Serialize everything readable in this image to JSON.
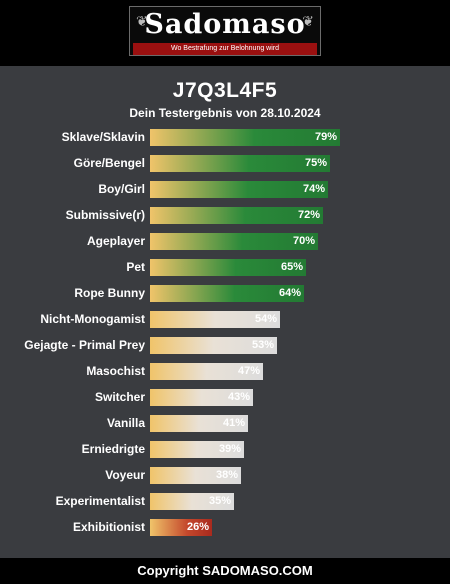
{
  "logo": {
    "name": "Sadomaso",
    "tagline": "Wo Bestrafung zur Belohnung wird"
  },
  "result": {
    "title": "J7Q3L4F5",
    "subtitle": "Dein Testergebnis von 28.10.2024"
  },
  "colors": {
    "background": "#3a3c40",
    "high": "#2a8a3a",
    "mid": "#dcdcdc",
    "low": "#b0321f",
    "gradient_start": "#f0c46a",
    "brand_red": "#9a1010"
  },
  "traits": [
    {
      "label": "Sklave/Sklavin",
      "percent": 79,
      "display": "79%",
      "level": "green"
    },
    {
      "label": "Göre/Bengel",
      "percent": 75,
      "display": "75%",
      "level": "green"
    },
    {
      "label": "Boy/Girl",
      "percent": 74,
      "display": "74%",
      "level": "green"
    },
    {
      "label": "Submissive(r)",
      "percent": 72,
      "display": "72%",
      "level": "green"
    },
    {
      "label": "Ageplayer",
      "percent": 70,
      "display": "70%",
      "level": "green"
    },
    {
      "label": "Pet",
      "percent": 65,
      "display": "65%",
      "level": "green"
    },
    {
      "label": "Rope Bunny",
      "percent": 64,
      "display": "64%",
      "level": "green"
    },
    {
      "label": "Nicht-Monogamist",
      "percent": 54,
      "display": "54%",
      "level": "gray"
    },
    {
      "label": "Gejagte - Primal Prey",
      "percent": 53,
      "display": "53%",
      "level": "gray"
    },
    {
      "label": "Masochist",
      "percent": 47,
      "display": "47%",
      "level": "gray"
    },
    {
      "label": "Switcher",
      "percent": 43,
      "display": "43%",
      "level": "gray"
    },
    {
      "label": "Vanilla",
      "percent": 41,
      "display": "41%",
      "level": "gray"
    },
    {
      "label": "Erniedrigte",
      "percent": 39,
      "display": "39%",
      "level": "gray"
    },
    {
      "label": "Voyeur",
      "percent": 38,
      "display": "38%",
      "level": "gray"
    },
    {
      "label": "Experimentalist",
      "percent": 35,
      "display": "35%",
      "level": "gray"
    },
    {
      "label": "Exhibitionist",
      "percent": 26,
      "display": "26%",
      "level": "red"
    }
  ],
  "footer": {
    "copyright": "Copyright SADOMASO.COM"
  }
}
